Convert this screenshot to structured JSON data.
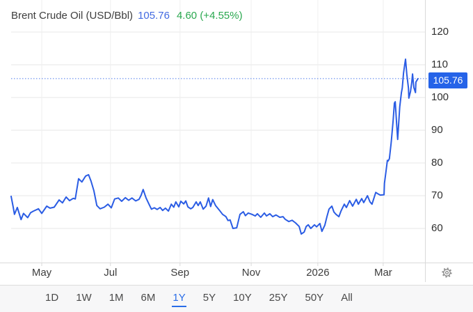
{
  "header": {
    "title": "Brent Crude Oil (USD/Bbl)",
    "price": "105.76",
    "change": "4.60 (+4.55%)"
  },
  "colors": {
    "line": "#2a5ce4",
    "dotted_line": "#3b6ce8",
    "badge_bg": "#2563e8",
    "badge_text": "#ffffff",
    "price_text": "#4169e1",
    "change_text": "#2aa84f",
    "active_range": "#2a6de8",
    "grid_horizontal": "#e7e7e7",
    "grid_vertical": "#efefef",
    "axis_line": "#d9d9d9"
  },
  "price_axis": {
    "ticks": [
      120,
      110,
      100,
      90,
      80,
      70,
      60
    ],
    "current_label": "105.76"
  },
  "time_axis": {
    "ticks": [
      {
        "label": "May",
        "pos": 0.074
      },
      {
        "label": "Jul",
        "pos": 0.24
      },
      {
        "label": "Sep",
        "pos": 0.408
      },
      {
        "label": "Nov",
        "pos": 0.58
      },
      {
        "label": "2026",
        "pos": 0.741
      },
      {
        "label": "Mar",
        "pos": 0.899
      }
    ]
  },
  "toolbar": {
    "ranges": [
      "1D",
      "1W",
      "1M",
      "6M",
      "1Y",
      "5Y",
      "10Y",
      "25Y",
      "50Y",
      "All"
    ],
    "active": "1Y"
  },
  "settings": {
    "icon": "gear-icon"
  },
  "chart_data": {
    "type": "line",
    "title": "Brent Crude Oil (USD/Bbl)",
    "series_name": "Brent Crude Oil",
    "unit": "USD/Bbl",
    "current_value": 105.76,
    "change": 4.6,
    "change_pct": 4.55,
    "x_range": [
      "Apr 2025",
      "Apr 2026"
    ],
    "x_tick_labels": [
      "May",
      "Jul",
      "Sep",
      "Nov",
      "2026",
      "Mar"
    ],
    "y_ticks": [
      120,
      110,
      100,
      90,
      80,
      70,
      60
    ],
    "ylim_visible": [
      50,
      128
    ],
    "grid": true,
    "legend": false,
    "points_format": "[position within 1-year window 0..1, price in USD/Bbl]",
    "points": [
      [
        0.0,
        69.8
      ],
      [
        0.005,
        66.5
      ],
      [
        0.008,
        64.3
      ],
      [
        0.015,
        66.4
      ],
      [
        0.024,
        62.7
      ],
      [
        0.03,
        64.6
      ],
      [
        0.04,
        63.3
      ],
      [
        0.047,
        64.8
      ],
      [
        0.054,
        65.3
      ],
      [
        0.066,
        66.0
      ],
      [
        0.074,
        64.6
      ],
      [
        0.086,
        66.8
      ],
      [
        0.094,
        66.2
      ],
      [
        0.104,
        66.5
      ],
      [
        0.116,
        68.7
      ],
      [
        0.124,
        67.8
      ],
      [
        0.133,
        69.6
      ],
      [
        0.141,
        68.5
      ],
      [
        0.15,
        69.2
      ],
      [
        0.155,
        69.0
      ],
      [
        0.163,
        75.2
      ],
      [
        0.171,
        74.2
      ],
      [
        0.18,
        76.0
      ],
      [
        0.187,
        76.4
      ],
      [
        0.193,
        74.5
      ],
      [
        0.2,
        71.5
      ],
      [
        0.207,
        67.0
      ],
      [
        0.215,
        66.0
      ],
      [
        0.225,
        66.5
      ],
      [
        0.234,
        67.4
      ],
      [
        0.242,
        66.3
      ],
      [
        0.25,
        69.0
      ],
      [
        0.259,
        69.3
      ],
      [
        0.267,
        68.3
      ],
      [
        0.276,
        69.4
      ],
      [
        0.284,
        68.6
      ],
      [
        0.292,
        69.3
      ],
      [
        0.301,
        68.4
      ],
      [
        0.309,
        68.9
      ],
      [
        0.314,
        70.1
      ],
      [
        0.319,
        71.9
      ],
      [
        0.326,
        69.3
      ],
      [
        0.334,
        67.2
      ],
      [
        0.339,
        65.9
      ],
      [
        0.346,
        66.3
      ],
      [
        0.353,
        65.8
      ],
      [
        0.36,
        66.4
      ],
      [
        0.366,
        65.5
      ],
      [
        0.373,
        66.2
      ],
      [
        0.38,
        65.3
      ],
      [
        0.387,
        67.4
      ],
      [
        0.393,
        66.5
      ],
      [
        0.398,
        68.1
      ],
      [
        0.405,
        66.6
      ],
      [
        0.41,
        68.3
      ],
      [
        0.417,
        67.5
      ],
      [
        0.422,
        68.4
      ],
      [
        0.427,
        66.6
      ],
      [
        0.434,
        66.0
      ],
      [
        0.439,
        66.4
      ],
      [
        0.447,
        68.1
      ],
      [
        0.452,
        67.0
      ],
      [
        0.457,
        68.1
      ],
      [
        0.464,
        65.9
      ],
      [
        0.471,
        66.8
      ],
      [
        0.477,
        69.3
      ],
      [
        0.482,
        66.7
      ],
      [
        0.487,
        68.8
      ],
      [
        0.494,
        67.0
      ],
      [
        0.503,
        65.6
      ],
      [
        0.511,
        64.3
      ],
      [
        0.519,
        63.6
      ],
      [
        0.524,
        62.4
      ],
      [
        0.529,
        62.6
      ],
      [
        0.536,
        60.0
      ],
      [
        0.545,
        60.2
      ],
      [
        0.553,
        64.3
      ],
      [
        0.561,
        65.1
      ],
      [
        0.566,
        63.9
      ],
      [
        0.573,
        64.7
      ],
      [
        0.582,
        64.3
      ],
      [
        0.59,
        63.8
      ],
      [
        0.595,
        64.5
      ],
      [
        0.603,
        63.4
      ],
      [
        0.612,
        64.7
      ],
      [
        0.617,
        63.8
      ],
      [
        0.625,
        64.5
      ],
      [
        0.632,
        63.6
      ],
      [
        0.64,
        64.1
      ],
      [
        0.649,
        63.4
      ],
      [
        0.657,
        63.6
      ],
      [
        0.662,
        62.8
      ],
      [
        0.671,
        62.1
      ],
      [
        0.679,
        62.5
      ],
      [
        0.687,
        61.7
      ],
      [
        0.696,
        60.6
      ],
      [
        0.701,
        58.3
      ],
      [
        0.708,
        58.9
      ],
      [
        0.713,
        60.6
      ],
      [
        0.718,
        61.1
      ],
      [
        0.724,
        60.0
      ],
      [
        0.733,
        61.1
      ],
      [
        0.738,
        60.5
      ],
      [
        0.746,
        61.5
      ],
      [
        0.751,
        59.1
      ],
      [
        0.758,
        61.0
      ],
      [
        0.763,
        63.6
      ],
      [
        0.768,
        65.9
      ],
      [
        0.775,
        66.8
      ],
      [
        0.78,
        65.0
      ],
      [
        0.785,
        64.3
      ],
      [
        0.792,
        63.6
      ],
      [
        0.797,
        65.3
      ],
      [
        0.805,
        67.4
      ],
      [
        0.81,
        66.4
      ],
      [
        0.818,
        68.5
      ],
      [
        0.825,
        66.8
      ],
      [
        0.834,
        68.9
      ],
      [
        0.839,
        67.4
      ],
      [
        0.847,
        69.1
      ],
      [
        0.852,
        67.9
      ],
      [
        0.861,
        70.0
      ],
      [
        0.867,
        68.1
      ],
      [
        0.872,
        67.4
      ],
      [
        0.881,
        71.0
      ],
      [
        0.886,
        70.6
      ],
      [
        0.892,
        70.2
      ],
      [
        0.901,
        70.3
      ],
      [
        0.902,
        73.8
      ],
      [
        0.906,
        77.7
      ],
      [
        0.909,
        80.8
      ],
      [
        0.911,
        80.6
      ],
      [
        0.914,
        81.3
      ],
      [
        0.918,
        85.9
      ],
      [
        0.919,
        87.2
      ],
      [
        0.923,
        93.0
      ],
      [
        0.926,
        98.3
      ],
      [
        0.928,
        98.7
      ],
      [
        0.931,
        93.0
      ],
      [
        0.934,
        87.2
      ],
      [
        0.939,
        97.2
      ],
      [
        0.943,
        101.5
      ],
      [
        0.945,
        102.9
      ],
      [
        0.948,
        107.4
      ],
      [
        0.951,
        110.0
      ],
      [
        0.953,
        111.7
      ],
      [
        0.956,
        107.2
      ],
      [
        0.96,
        102.9
      ],
      [
        0.961,
        99.8
      ],
      [
        0.965,
        101.9
      ],
      [
        0.968,
        104.7
      ],
      [
        0.97,
        107.2
      ],
      [
        0.973,
        103.1
      ],
      [
        0.977,
        101.5
      ],
      [
        0.978,
        104.7
      ],
      [
        0.983,
        105.76
      ]
    ]
  }
}
